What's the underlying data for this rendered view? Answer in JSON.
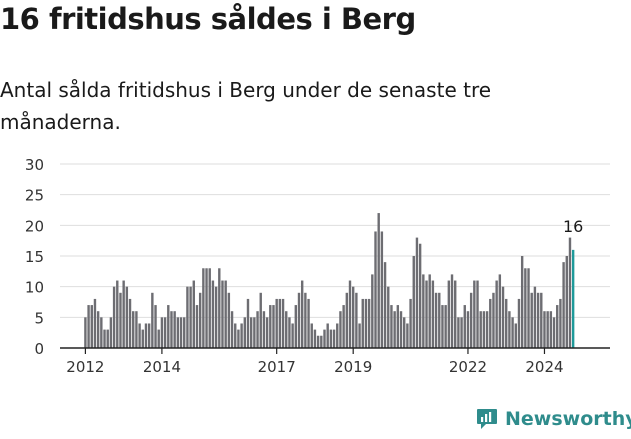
{
  "header": {
    "title": "16 fritidshus såldes i Berg",
    "subtitle": "Antal sålda fritidshus i Berg under de senaste tre månaderna."
  },
  "brand": {
    "name": "Newsworthy",
    "icon": "newsworthy-chart-icon",
    "color": "#2f8c8c"
  },
  "colors": {
    "bar": "#6d6d72",
    "highlight": "#1f9a9a",
    "grid": "#dedede",
    "text": "#333333"
  },
  "chart_data": {
    "type": "bar",
    "title": "",
    "xlabel": "",
    "ylabel": "",
    "ylim": [
      0,
      30
    ],
    "yticks": [
      0,
      5,
      10,
      15,
      20,
      25,
      30
    ],
    "grid": true,
    "x_tick_labels": [
      "2012",
      "2014",
      "2017",
      "2019",
      "2022",
      "2024"
    ],
    "x_tick_years": [
      2012,
      2014,
      2017,
      2019,
      2022,
      2024
    ],
    "start_year": 2012,
    "periods_per_year": 12,
    "annotation": {
      "label": "16",
      "value": 16
    },
    "values": [
      5,
      7,
      7,
      8,
      6,
      5,
      3,
      3,
      5,
      10,
      11,
      9,
      11,
      10,
      8,
      6,
      6,
      4,
      3,
      4,
      4,
      9,
      7,
      3,
      5,
      5,
      7,
      6,
      6,
      5,
      5,
      5,
      10,
      10,
      11,
      7,
      9,
      13,
      13,
      13,
      11,
      10,
      13,
      11,
      11,
      9,
      6,
      4,
      3,
      4,
      5,
      8,
      5,
      5,
      6,
      9,
      6,
      5,
      7,
      7,
      8,
      8,
      8,
      6,
      5,
      4,
      7,
      9,
      11,
      9,
      8,
      4,
      3,
      2,
      2,
      3,
      4,
      3,
      3,
      4,
      6,
      7,
      9,
      11,
      10,
      9,
      4,
      8,
      8,
      8,
      12,
      19,
      22,
      19,
      14,
      10,
      7,
      6,
      7,
      6,
      5,
      4,
      8,
      15,
      18,
      17,
      12,
      11,
      12,
      11,
      9,
      9,
      7,
      7,
      11,
      12,
      11,
      5,
      5,
      7,
      6,
      9,
      11,
      11,
      6,
      6,
      6,
      8,
      9,
      11,
      12,
      10,
      8,
      6,
      5,
      4,
      8,
      15,
      13,
      13,
      9,
      10,
      9,
      9,
      6,
      6,
      6,
      5,
      7,
      8,
      14,
      15,
      18,
      16
    ]
  }
}
